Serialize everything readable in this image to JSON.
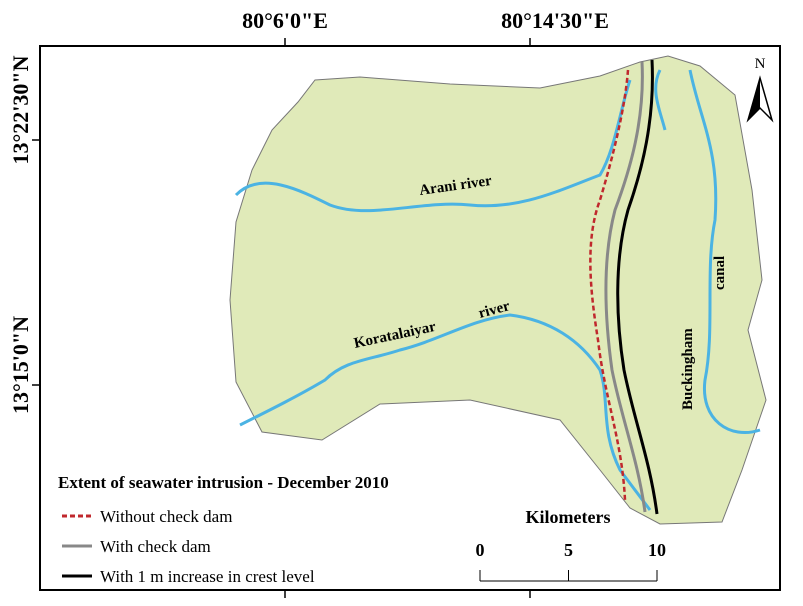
{
  "map": {
    "top_labels": [
      "80°6'0\"E",
      "80°14'30\"E"
    ],
    "left_labels": [
      "13°22'30\"N",
      "13°15'0\"N"
    ],
    "north": "N",
    "rivers": [
      "Arani river",
      "Koratalaiyar",
      "river"
    ],
    "canal": [
      "Buckingham",
      "canal"
    ],
    "legend": {
      "title": "Extent of seawater intrusion - December 2010",
      "items": [
        "Without check dam",
        "With check dam",
        "With 1 m increase in crest level"
      ]
    },
    "scale_bar": {
      "title": "Kilometers",
      "ticks": [
        0,
        5,
        10
      ]
    }
  }
}
